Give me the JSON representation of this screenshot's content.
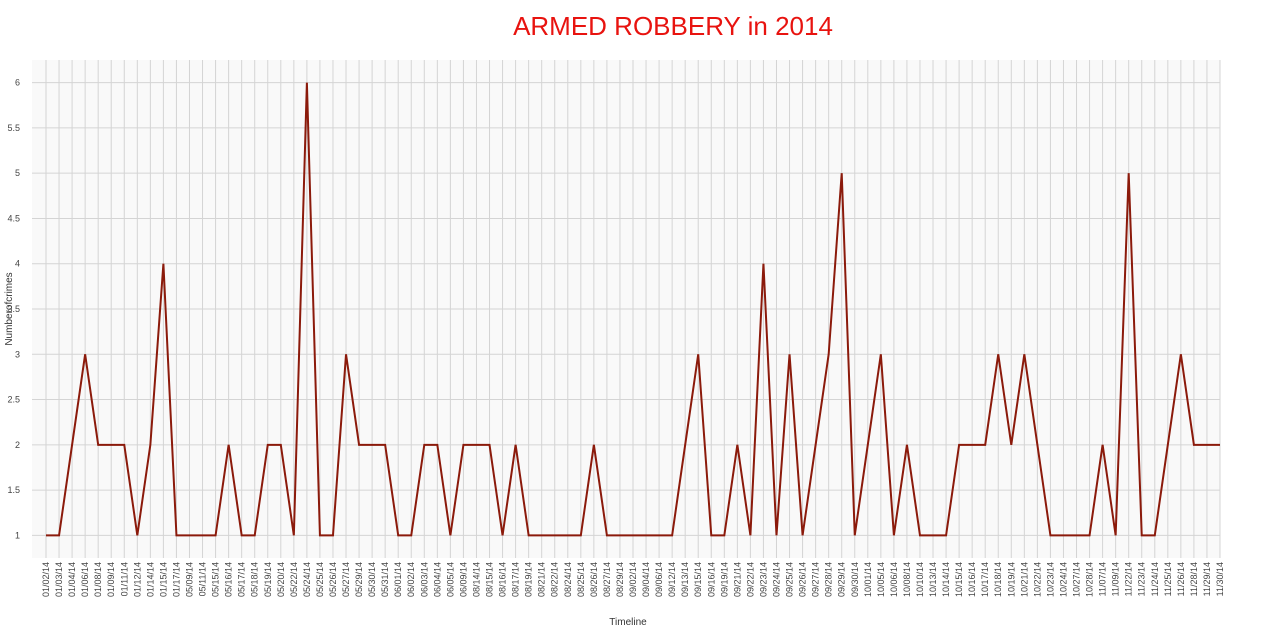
{
  "chart_data": {
    "type": "line",
    "title": "ARMED ROBBERY in 2014",
    "xlabel": "Timeline",
    "ylabel": "Numberofcrimes",
    "categories": [
      "01/02/14",
      "01/03/14",
      "01/04/14",
      "01/06/14",
      "01/08/14",
      "01/09/14",
      "01/11/14",
      "01/12/14",
      "01/14/14",
      "01/15/14",
      "01/17/14",
      "05/09/14",
      "05/11/14",
      "05/15/14",
      "05/16/14",
      "05/17/14",
      "05/18/14",
      "05/19/14",
      "05/20/14",
      "05/22/14",
      "05/24/14",
      "05/25/14",
      "05/26/14",
      "05/27/14",
      "05/29/14",
      "05/30/14",
      "05/31/14",
      "06/01/14",
      "06/02/14",
      "06/03/14",
      "06/04/14",
      "06/05/14",
      "06/09/14",
      "08/14/14",
      "08/15/14",
      "08/16/14",
      "08/17/14",
      "08/19/14",
      "08/21/14",
      "08/22/14",
      "08/24/14",
      "08/25/14",
      "08/26/14",
      "08/27/14",
      "08/29/14",
      "09/02/14",
      "09/04/14",
      "09/06/14",
      "09/12/14",
      "09/13/14",
      "09/15/14",
      "09/16/14",
      "09/19/14",
      "09/21/14",
      "09/22/14",
      "09/23/14",
      "09/24/14",
      "09/25/14",
      "09/26/14",
      "09/27/14",
      "09/28/14",
      "09/29/14",
      "09/30/14",
      "10/01/14",
      "10/05/14",
      "10/06/14",
      "10/08/14",
      "10/10/14",
      "10/13/14",
      "10/14/14",
      "10/15/14",
      "10/16/14",
      "10/17/14",
      "10/18/14",
      "10/19/14",
      "10/21/14",
      "10/22/14",
      "10/23/14",
      "10/24/14",
      "10/27/14",
      "10/28/14",
      "11/07/14",
      "11/09/14",
      "11/22/14",
      "11/23/14",
      "11/24/14",
      "11/25/14",
      "11/26/14",
      "11/28/14",
      "11/29/14",
      "11/30/14"
    ],
    "series": [
      {
        "name": "Numberofcrimes",
        "color": "#8b1a0b",
        "values": [
          1,
          1,
          2,
          3,
          2,
          2,
          2,
          1,
          2,
          4,
          1,
          1,
          1,
          1,
          2,
          1,
          1,
          2,
          2,
          1,
          6,
          1,
          1,
          3,
          2,
          2,
          2,
          1,
          1,
          2,
          2,
          1,
          2,
          2,
          2,
          1,
          2,
          1,
          1,
          1,
          1,
          1,
          2,
          1,
          1,
          1,
          1,
          1,
          1,
          2,
          3,
          1,
          1,
          2,
          1,
          4,
          1,
          3,
          1,
          2,
          3,
          5,
          1,
          2,
          3,
          1,
          2,
          1,
          1,
          1,
          2,
          2,
          2,
          3,
          2,
          3,
          2,
          1,
          1,
          1,
          1,
          2,
          1,
          5,
          1,
          1,
          2,
          3,
          2,
          2,
          2
        ]
      }
    ],
    "ylim": [
      0.75,
      6.25
    ],
    "yticks": [
      1,
      1.5,
      2,
      2.5,
      3,
      3.5,
      4,
      4.5,
      5,
      5.5,
      6
    ],
    "grid": true
  }
}
